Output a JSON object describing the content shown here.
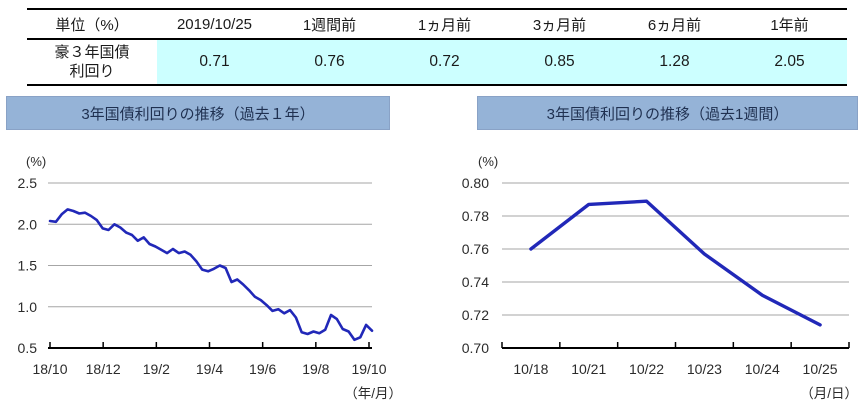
{
  "table": {
    "headers": [
      "単位（%）",
      "2019/10/25",
      "1週間前",
      "1ヵ月前",
      "3ヵ月前",
      "6ヵ月前",
      "1年前"
    ],
    "row": {
      "label_line1": "豪３年国債",
      "label_line2": "利回り",
      "values": [
        "0.71",
        "0.76",
        "0.72",
        "0.85",
        "1.28",
        "2.05"
      ]
    }
  },
  "colors": {
    "table_highlight": "#ccffff",
    "banner_bg": "#95b3d7",
    "banner_text": "#1f3050",
    "line": "#2128b8",
    "grid": "#a6a6a6",
    "axis": "#000000",
    "label_text": "#2b2b2b"
  },
  "chart_data": [
    {
      "type": "line",
      "title": "3年国債利回りの推移（過去１年）",
      "ylabel": "(%)",
      "xlabel": "（年/月）",
      "x_ticks": [
        "18/10",
        "18/12",
        "19/2",
        "19/4",
        "19/6",
        "19/8",
        "19/10"
      ],
      "ylim": [
        0.5,
        2.5
      ],
      "y_ticks": [
        "0.5",
        "1.0",
        "1.5",
        "2.0",
        "2.5"
      ],
      "grid": true,
      "legend": "none",
      "series_name": "豪3年国債利回り",
      "values": [
        2.04,
        2.03,
        2.12,
        2.18,
        2.16,
        2.13,
        2.14,
        2.1,
        2.05,
        1.95,
        1.93,
        2.0,
        1.96,
        1.9,
        1.87,
        1.8,
        1.84,
        1.76,
        1.73,
        1.69,
        1.65,
        1.7,
        1.65,
        1.67,
        1.63,
        1.55,
        1.45,
        1.43,
        1.46,
        1.5,
        1.47,
        1.3,
        1.33,
        1.27,
        1.2,
        1.12,
        1.08,
        1.02,
        0.95,
        0.97,
        0.92,
        0.96,
        0.87,
        0.69,
        0.67,
        0.7,
        0.68,
        0.72,
        0.9,
        0.85,
        0.73,
        0.7,
        0.6,
        0.63,
        0.78,
        0.71
      ]
    },
    {
      "type": "line",
      "title": "3年国債利回りの推移（過去1週間）",
      "ylabel": "(%)",
      "xlabel": "（月/日）",
      "categories": [
        "10/18",
        "10/21",
        "10/22",
        "10/23",
        "10/24",
        "10/25"
      ],
      "ylim": [
        0.7,
        0.8
      ],
      "y_ticks": [
        "0.70",
        "0.72",
        "0.74",
        "0.76",
        "0.78",
        "0.80"
      ],
      "grid": true,
      "legend": "none",
      "series_name": "豪3年国債利回り",
      "values": [
        0.76,
        0.787,
        0.789,
        0.757,
        0.732,
        0.714
      ]
    }
  ]
}
